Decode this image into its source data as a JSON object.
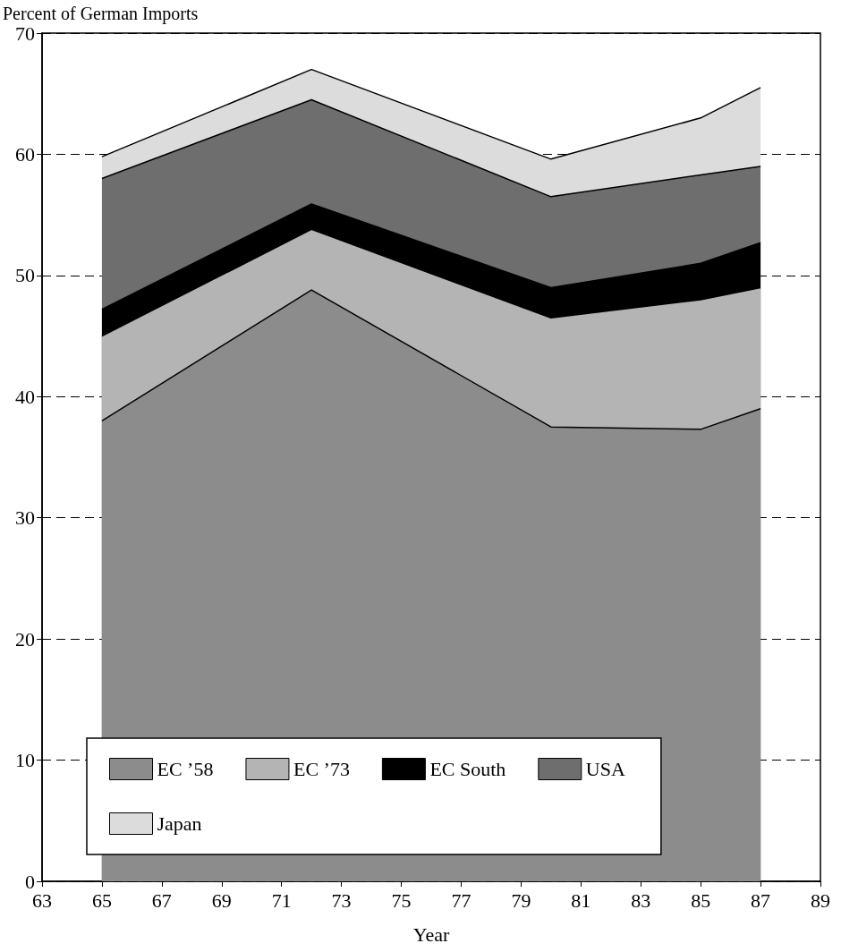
{
  "chart_data": {
    "type": "area",
    "ylabel": "Percent of German Imports",
    "xlabel": "Year",
    "x": [
      65,
      72,
      80,
      85,
      87
    ],
    "stacked": true,
    "series": [
      {
        "name": "EC ’58",
        "color": "#8c8c8c",
        "values": [
          38,
          48.8,
          37.5,
          37.3,
          39
        ]
      },
      {
        "name": "EC ’73",
        "color": "#b4b4b4",
        "values": [
          7,
          5,
          9,
          10.7,
          10
        ]
      },
      {
        "name": "EC South",
        "color": "#000000",
        "values": [
          2.2,
          2.1,
          2.5,
          3,
          3.7
        ]
      },
      {
        "name": "USA",
        "color": "#6e6e6e",
        "values": [
          10.8,
          8.6,
          7.5,
          7.3,
          6.3
        ]
      },
      {
        "name": "Japan",
        "color": "#dcdcdc",
        "values": [
          1.8,
          2.5,
          3.1,
          4.7,
          6.5
        ]
      }
    ],
    "xlim": [
      63,
      89
    ],
    "xticks": [
      63,
      65,
      67,
      69,
      71,
      73,
      75,
      77,
      79,
      81,
      83,
      85,
      87,
      89
    ],
    "ylim": [
      0,
      70
    ],
    "yticks": [
      0,
      10,
      20,
      30,
      40,
      50,
      60,
      70
    ],
    "grid": "y",
    "legend": "bottom",
    "line_style": "solid"
  }
}
